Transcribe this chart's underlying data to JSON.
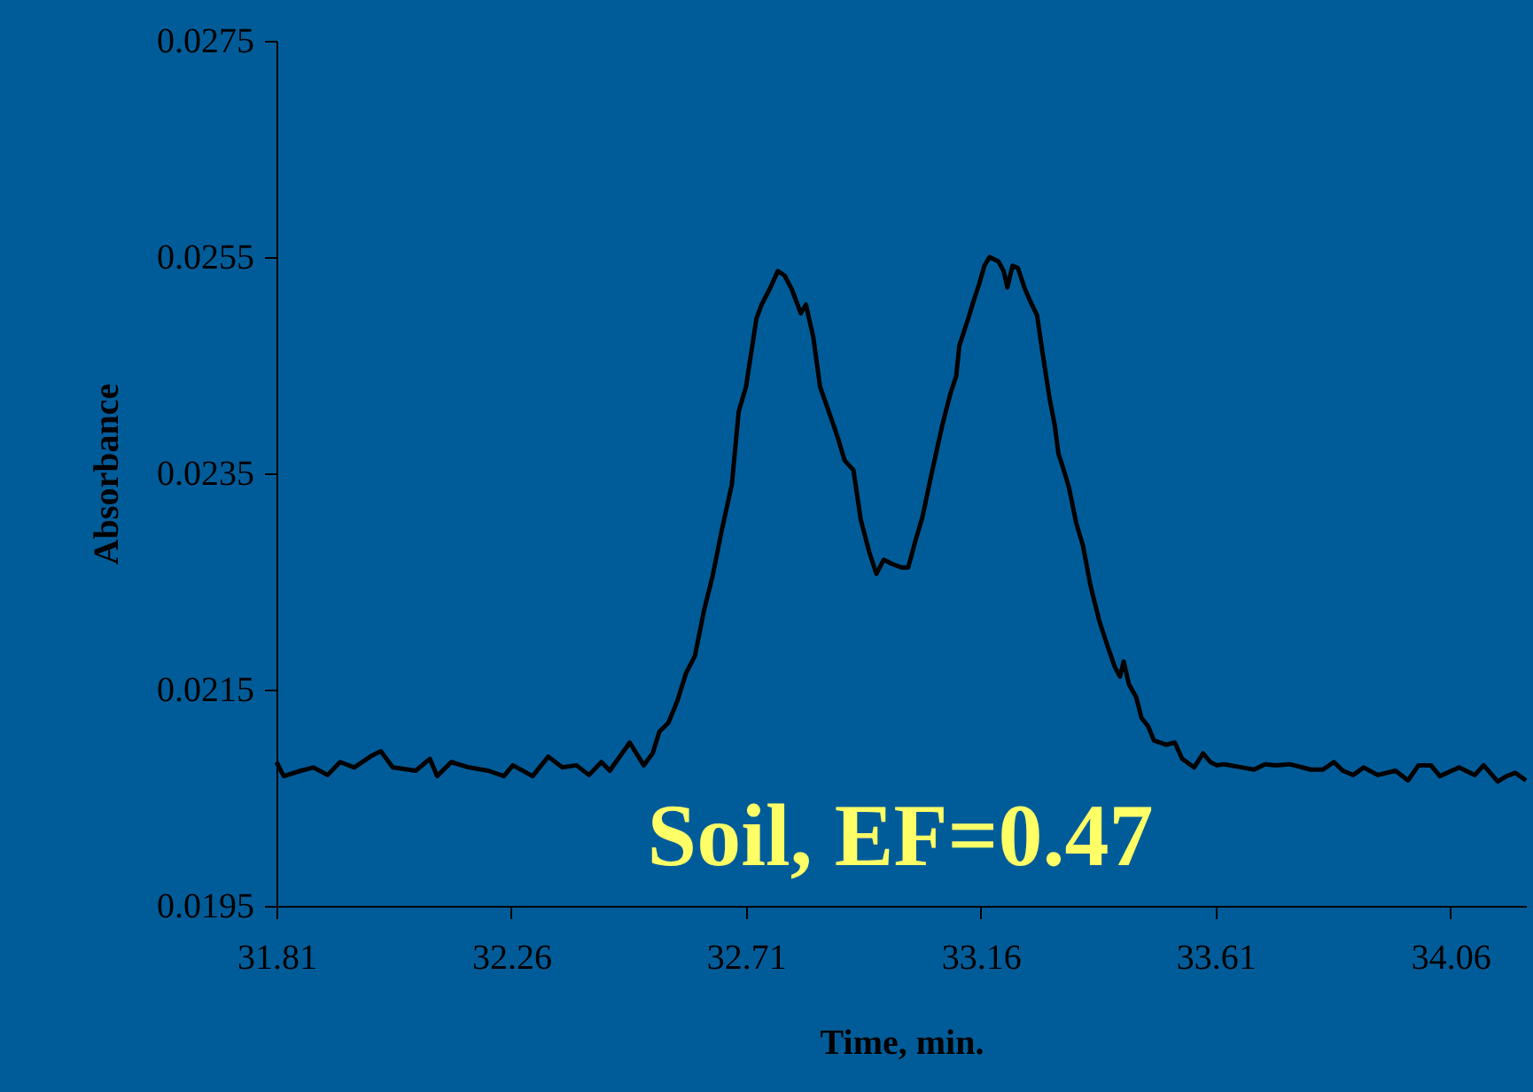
{
  "chart_data": {
    "type": "line",
    "xlabel": "Time, min.",
    "ylabel": "Absorbance",
    "annotations": [
      "Soil, EF=0.47"
    ],
    "xlim": [
      31.81,
      34.205
    ],
    "xticks": [
      31.81,
      32.26,
      32.71,
      33.16,
      33.61,
      34.06
    ],
    "ylim": [
      0.0195,
      0.0275
    ],
    "yticks": [
      0.0195,
      0.0215,
      0.0235,
      0.0255,
      0.0275
    ],
    "grid": false,
    "marker": "none",
    "line_style": "solid",
    "series": [
      {
        "color": "#000000",
        "x": [
          31.81,
          31.824,
          31.857,
          31.881,
          31.908,
          31.932,
          31.959,
          31.993,
          32.01,
          32.033,
          32.077,
          32.104,
          32.118,
          32.145,
          32.179,
          32.216,
          32.246,
          32.263,
          32.301,
          32.331,
          32.358,
          32.385,
          32.409,
          32.433,
          32.449,
          32.487,
          32.514,
          32.531,
          32.544,
          32.561,
          32.578,
          32.595,
          32.612,
          32.629,
          32.646,
          32.663,
          32.683,
          32.696,
          32.71,
          32.73,
          32.74,
          32.757,
          32.771,
          32.784,
          32.798,
          32.815,
          32.825,
          32.839,
          32.852,
          32.866,
          32.886,
          32.899,
          32.916,
          32.93,
          32.947,
          32.96,
          32.974,
          32.991,
          33.008,
          33.021,
          33.035,
          33.048,
          33.065,
          33.086,
          33.102,
          33.113,
          33.119,
          33.136,
          33.146,
          33.157,
          33.167,
          33.177,
          33.194,
          33.204,
          33.211,
          33.221,
          33.231,
          33.245,
          33.258,
          33.268,
          33.278,
          33.292,
          33.302,
          33.309,
          33.316,
          33.329,
          33.343,
          33.356,
          33.37,
          33.387,
          33.404,
          33.417,
          33.427,
          33.434,
          33.444,
          33.458,
          33.468,
          33.481,
          33.492,
          33.515,
          33.532,
          33.546,
          33.569,
          33.586,
          33.6,
          33.613,
          33.627,
          33.661,
          33.684,
          33.705,
          33.725,
          33.752,
          33.793,
          33.816,
          33.837,
          33.854,
          33.874,
          33.894,
          33.921,
          33.955,
          33.979,
          33.999,
          34.023,
          34.04,
          34.063,
          34.077,
          34.107,
          34.124,
          34.151,
          34.168,
          34.185,
          34.205
        ],
        "values": [
          0.02083,
          0.0207,
          0.02075,
          0.02078,
          0.02071,
          0.02083,
          0.02078,
          0.02089,
          0.02093,
          0.02078,
          0.02075,
          0.02086,
          0.0207,
          0.02083,
          0.02078,
          0.02075,
          0.0207,
          0.0208,
          0.0207,
          0.02088,
          0.02078,
          0.0208,
          0.02071,
          0.02083,
          0.02075,
          0.02101,
          0.0208,
          0.02091,
          0.02111,
          0.02119,
          0.02139,
          0.02165,
          0.02181,
          0.02222,
          0.02255,
          0.02296,
          0.0234,
          0.02407,
          0.0243,
          0.02493,
          0.02506,
          0.02522,
          0.02537,
          0.02533,
          0.0252,
          0.02498,
          0.02506,
          0.02476,
          0.0243,
          0.02411,
          0.02383,
          0.02362,
          0.02353,
          0.02307,
          0.02276,
          0.02257,
          0.0227,
          0.02266,
          0.02263,
          0.02263,
          0.02288,
          0.02309,
          0.02348,
          0.02394,
          0.02424,
          0.0244,
          0.02468,
          0.02493,
          0.02509,
          0.02525,
          0.02542,
          0.0255,
          0.02546,
          0.02537,
          0.02522,
          0.02542,
          0.0254,
          0.0252,
          0.02506,
          0.02496,
          0.02463,
          0.02419,
          0.02394,
          0.02368,
          0.02358,
          0.02337,
          0.02304,
          0.02283,
          0.02247,
          0.02214,
          0.02189,
          0.02171,
          0.02162,
          0.02176,
          0.02155,
          0.02143,
          0.02124,
          0.02116,
          0.02103,
          0.02099,
          0.02101,
          0.02086,
          0.02078,
          0.02091,
          0.02083,
          0.0208,
          0.02081,
          0.02078,
          0.02076,
          0.02081,
          0.0208,
          0.02081,
          0.02076,
          0.02076,
          0.02083,
          0.02075,
          0.02071,
          0.02078,
          0.02071,
          0.02075,
          0.02066,
          0.0208,
          0.0208,
          0.0207,
          0.02075,
          0.02078,
          0.02071,
          0.0208,
          0.02065,
          0.0207,
          0.02073,
          0.02066
        ]
      }
    ]
  }
}
